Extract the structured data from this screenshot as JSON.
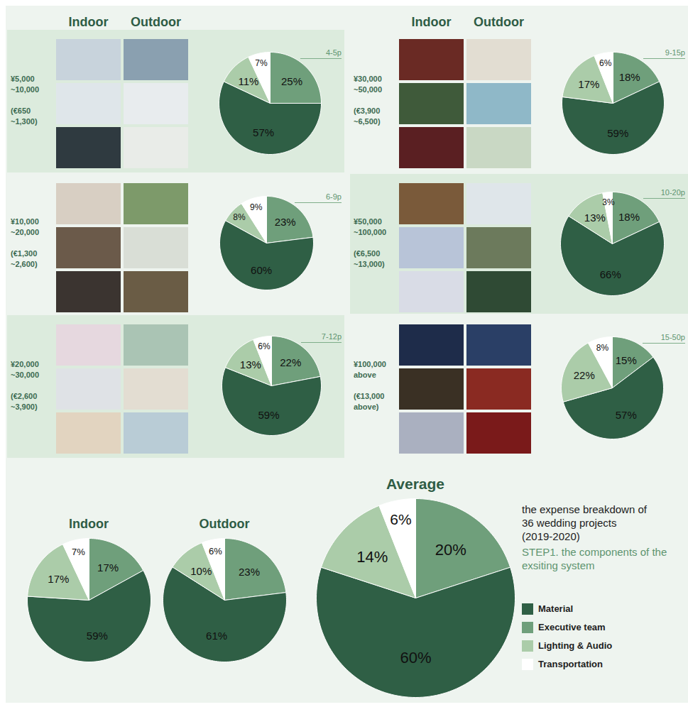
{
  "header": {
    "columns": [
      "Indoor",
      "Outdoor"
    ]
  },
  "caption": {
    "title": "the expense breakdown of 36 wedding projects (2019-2020)",
    "subtitle": "STEP1. the components of the exsiting system"
  },
  "chart_data": [
    {
      "type": "pie",
      "title": "¥5,000~10,000",
      "subtitle": "(€650~1,300)",
      "annotation": "4-5p",
      "categories": [
        "Material",
        "Executive team",
        "Lighting & Audio",
        "Transportation"
      ],
      "values": [
        57,
        25,
        11,
        7
      ],
      "value_labels": [
        "57%",
        "25%",
        "11%",
        "7%"
      ],
      "colors": [
        "#2f5f45",
        "#6f9f7b",
        "#abcca9",
        "#ffffff"
      ],
      "data_labels": true
    },
    {
      "type": "pie",
      "title": "¥10,000~20,000",
      "subtitle": "(€1,300~2,600)",
      "annotation": "6-9p",
      "categories": [
        "Material",
        "Executive team",
        "Lighting & Audio",
        "Transportation"
      ],
      "values": [
        60,
        23,
        8,
        9
      ],
      "value_labels": [
        "60%",
        "23%",
        "8%",
        "9%"
      ],
      "colors": [
        "#2f5f45",
        "#6f9f7b",
        "#abcca9",
        "#ffffff"
      ],
      "data_labels": true
    },
    {
      "type": "pie",
      "title": "¥20,000~30,000",
      "subtitle": "(€2,600~3,900)",
      "annotation": "7-12p",
      "categories": [
        "Material",
        "Executive team",
        "Lighting & Audio",
        "Transportation"
      ],
      "values": [
        59,
        22,
        13,
        6
      ],
      "value_labels": [
        "59%",
        "22%",
        "13%",
        "6%"
      ],
      "colors": [
        "#2f5f45",
        "#6f9f7b",
        "#abcca9",
        "#ffffff"
      ],
      "data_labels": true
    },
    {
      "type": "pie",
      "title": "¥30,000~50,000",
      "subtitle": "(€3,900~6,500)",
      "annotation": "9-15p",
      "categories": [
        "Material",
        "Executive team",
        "Lighting & Audio",
        "Transportation"
      ],
      "values": [
        59,
        18,
        17,
        6
      ],
      "value_labels": [
        "59%",
        "18%",
        "17%",
        "6%"
      ],
      "colors": [
        "#2f5f45",
        "#6f9f7b",
        "#abcca9",
        "#ffffff"
      ],
      "data_labels": true
    },
    {
      "type": "pie",
      "title": "¥50,000~100,000",
      "subtitle": "(€6,500~13,000)",
      "annotation": "10-20p",
      "categories": [
        "Material",
        "Executive team",
        "Lighting & Audio",
        "Transportation"
      ],
      "values": [
        66,
        18,
        13,
        3
      ],
      "value_labels": [
        "66%",
        "18%",
        "13%",
        "3%"
      ],
      "colors": [
        "#2f5f45",
        "#6f9f7b",
        "#abcca9",
        "#ffffff"
      ],
      "data_labels": true
    },
    {
      "type": "pie",
      "title": "¥100,000 above",
      "subtitle": "(€13,000 above)",
      "annotation": "15-50p",
      "categories": [
        "Material",
        "Executive team",
        "Lighting & Audio",
        "Transportation"
      ],
      "values": [
        57,
        15,
        22,
        8
      ],
      "value_labels": [
        "57%",
        "15%",
        "22%",
        "8%"
      ],
      "colors": [
        "#2f5f45",
        "#6f9f7b",
        "#abcca9",
        "#ffffff"
      ],
      "data_labels": true
    },
    {
      "type": "pie",
      "title": "Indoor",
      "categories": [
        "Material",
        "Executive team",
        "Lighting & Audio",
        "Transportation"
      ],
      "values": [
        59,
        17,
        17,
        7
      ],
      "value_labels": [
        "59%",
        "17%",
        "17%",
        "7%"
      ],
      "colors": [
        "#2f5f45",
        "#6f9f7b",
        "#abcca9",
        "#ffffff"
      ],
      "data_labels": true
    },
    {
      "type": "pie",
      "title": "Outdoor",
      "categories": [
        "Material",
        "Executive team",
        "Lighting & Audio",
        "Transportation"
      ],
      "values": [
        61,
        23,
        10,
        6
      ],
      "value_labels": [
        "61%",
        "23%",
        "10%",
        "6%"
      ],
      "colors": [
        "#2f5f45",
        "#6f9f7b",
        "#abcca9",
        "#ffffff"
      ],
      "data_labels": true
    },
    {
      "type": "pie",
      "title": "Average",
      "categories": [
        "Material",
        "Executive team",
        "Lighting & Audio",
        "Transportation"
      ],
      "values": [
        60,
        20,
        14,
        6
      ],
      "value_labels": [
        "60%",
        "20%",
        "14%",
        "6%"
      ],
      "colors": [
        "#2f5f45",
        "#6f9f7b",
        "#abcca9",
        "#ffffff"
      ],
      "data_labels": true,
      "legend": "right"
    }
  ]
}
